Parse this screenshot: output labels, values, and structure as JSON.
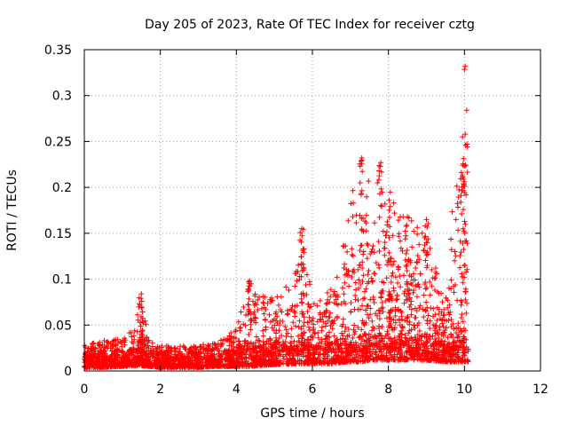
{
  "chart_data": {
    "type": "scatter",
    "title": "Day 205 of 2023, Rate Of TEC Index for receiver cztg",
    "xlabel": "GPS time / hours",
    "ylabel": "ROTI / TECUs",
    "xlim": [
      0,
      12
    ],
    "ylim": [
      0,
      0.35
    ],
    "x_ticks": [
      "0",
      "2",
      "4",
      "6",
      "8",
      "10",
      "12"
    ],
    "y_ticks": [
      "0",
      "0.05",
      "0.1",
      "0.15",
      "0.2",
      "0.25",
      "0.3",
      "0.35"
    ],
    "grid": true,
    "marker": "plus",
    "series_color": "#ff0000",
    "x_extent": [
      0,
      10.1
    ],
    "envelope": [
      [
        0.0,
        0.004,
        0.028
      ],
      [
        0.5,
        0.004,
        0.033
      ],
      [
        1.0,
        0.005,
        0.036
      ],
      [
        1.3,
        0.006,
        0.045
      ],
      [
        1.5,
        0.006,
        0.084
      ],
      [
        1.7,
        0.005,
        0.032
      ],
      [
        2.0,
        0.004,
        0.028
      ],
      [
        2.5,
        0.004,
        0.027
      ],
      [
        3.0,
        0.004,
        0.028
      ],
      [
        3.5,
        0.005,
        0.032
      ],
      [
        4.0,
        0.005,
        0.046
      ],
      [
        4.3,
        0.005,
        0.098
      ],
      [
        4.6,
        0.006,
        0.085
      ],
      [
        5.0,
        0.007,
        0.08
      ],
      [
        5.5,
        0.008,
        0.1
      ],
      [
        5.7,
        0.008,
        0.155
      ],
      [
        6.0,
        0.008,
        0.08
      ],
      [
        6.5,
        0.008,
        0.09
      ],
      [
        6.9,
        0.01,
        0.155
      ],
      [
        7.1,
        0.01,
        0.21
      ],
      [
        7.3,
        0.01,
        0.232
      ],
      [
        7.5,
        0.012,
        0.21
      ],
      [
        7.8,
        0.012,
        0.227
      ],
      [
        8.0,
        0.012,
        0.195
      ],
      [
        8.3,
        0.012,
        0.17
      ],
      [
        8.6,
        0.012,
        0.165
      ],
      [
        9.0,
        0.012,
        0.16
      ],
      [
        9.5,
        0.01,
        0.075
      ],
      [
        9.8,
        0.01,
        0.25
      ],
      [
        10.0,
        0.01,
        0.332
      ],
      [
        10.1,
        0.01,
        0.03
      ]
    ],
    "peaks": [
      {
        "x": 1.5,
        "y": 0.084
      },
      {
        "x": 4.35,
        "y": 0.098
      },
      {
        "x": 5.72,
        "y": 0.155
      },
      {
        "x": 7.3,
        "y": 0.232
      },
      {
        "x": 7.8,
        "y": 0.227
      },
      {
        "x": 8.05,
        "y": 0.195
      },
      {
        "x": 8.5,
        "y": 0.168
      },
      {
        "x": 9.0,
        "y": 0.165
      },
      {
        "x": 9.95,
        "y": 0.255
      },
      {
        "x": 10.02,
        "y": 0.332
      }
    ]
  }
}
